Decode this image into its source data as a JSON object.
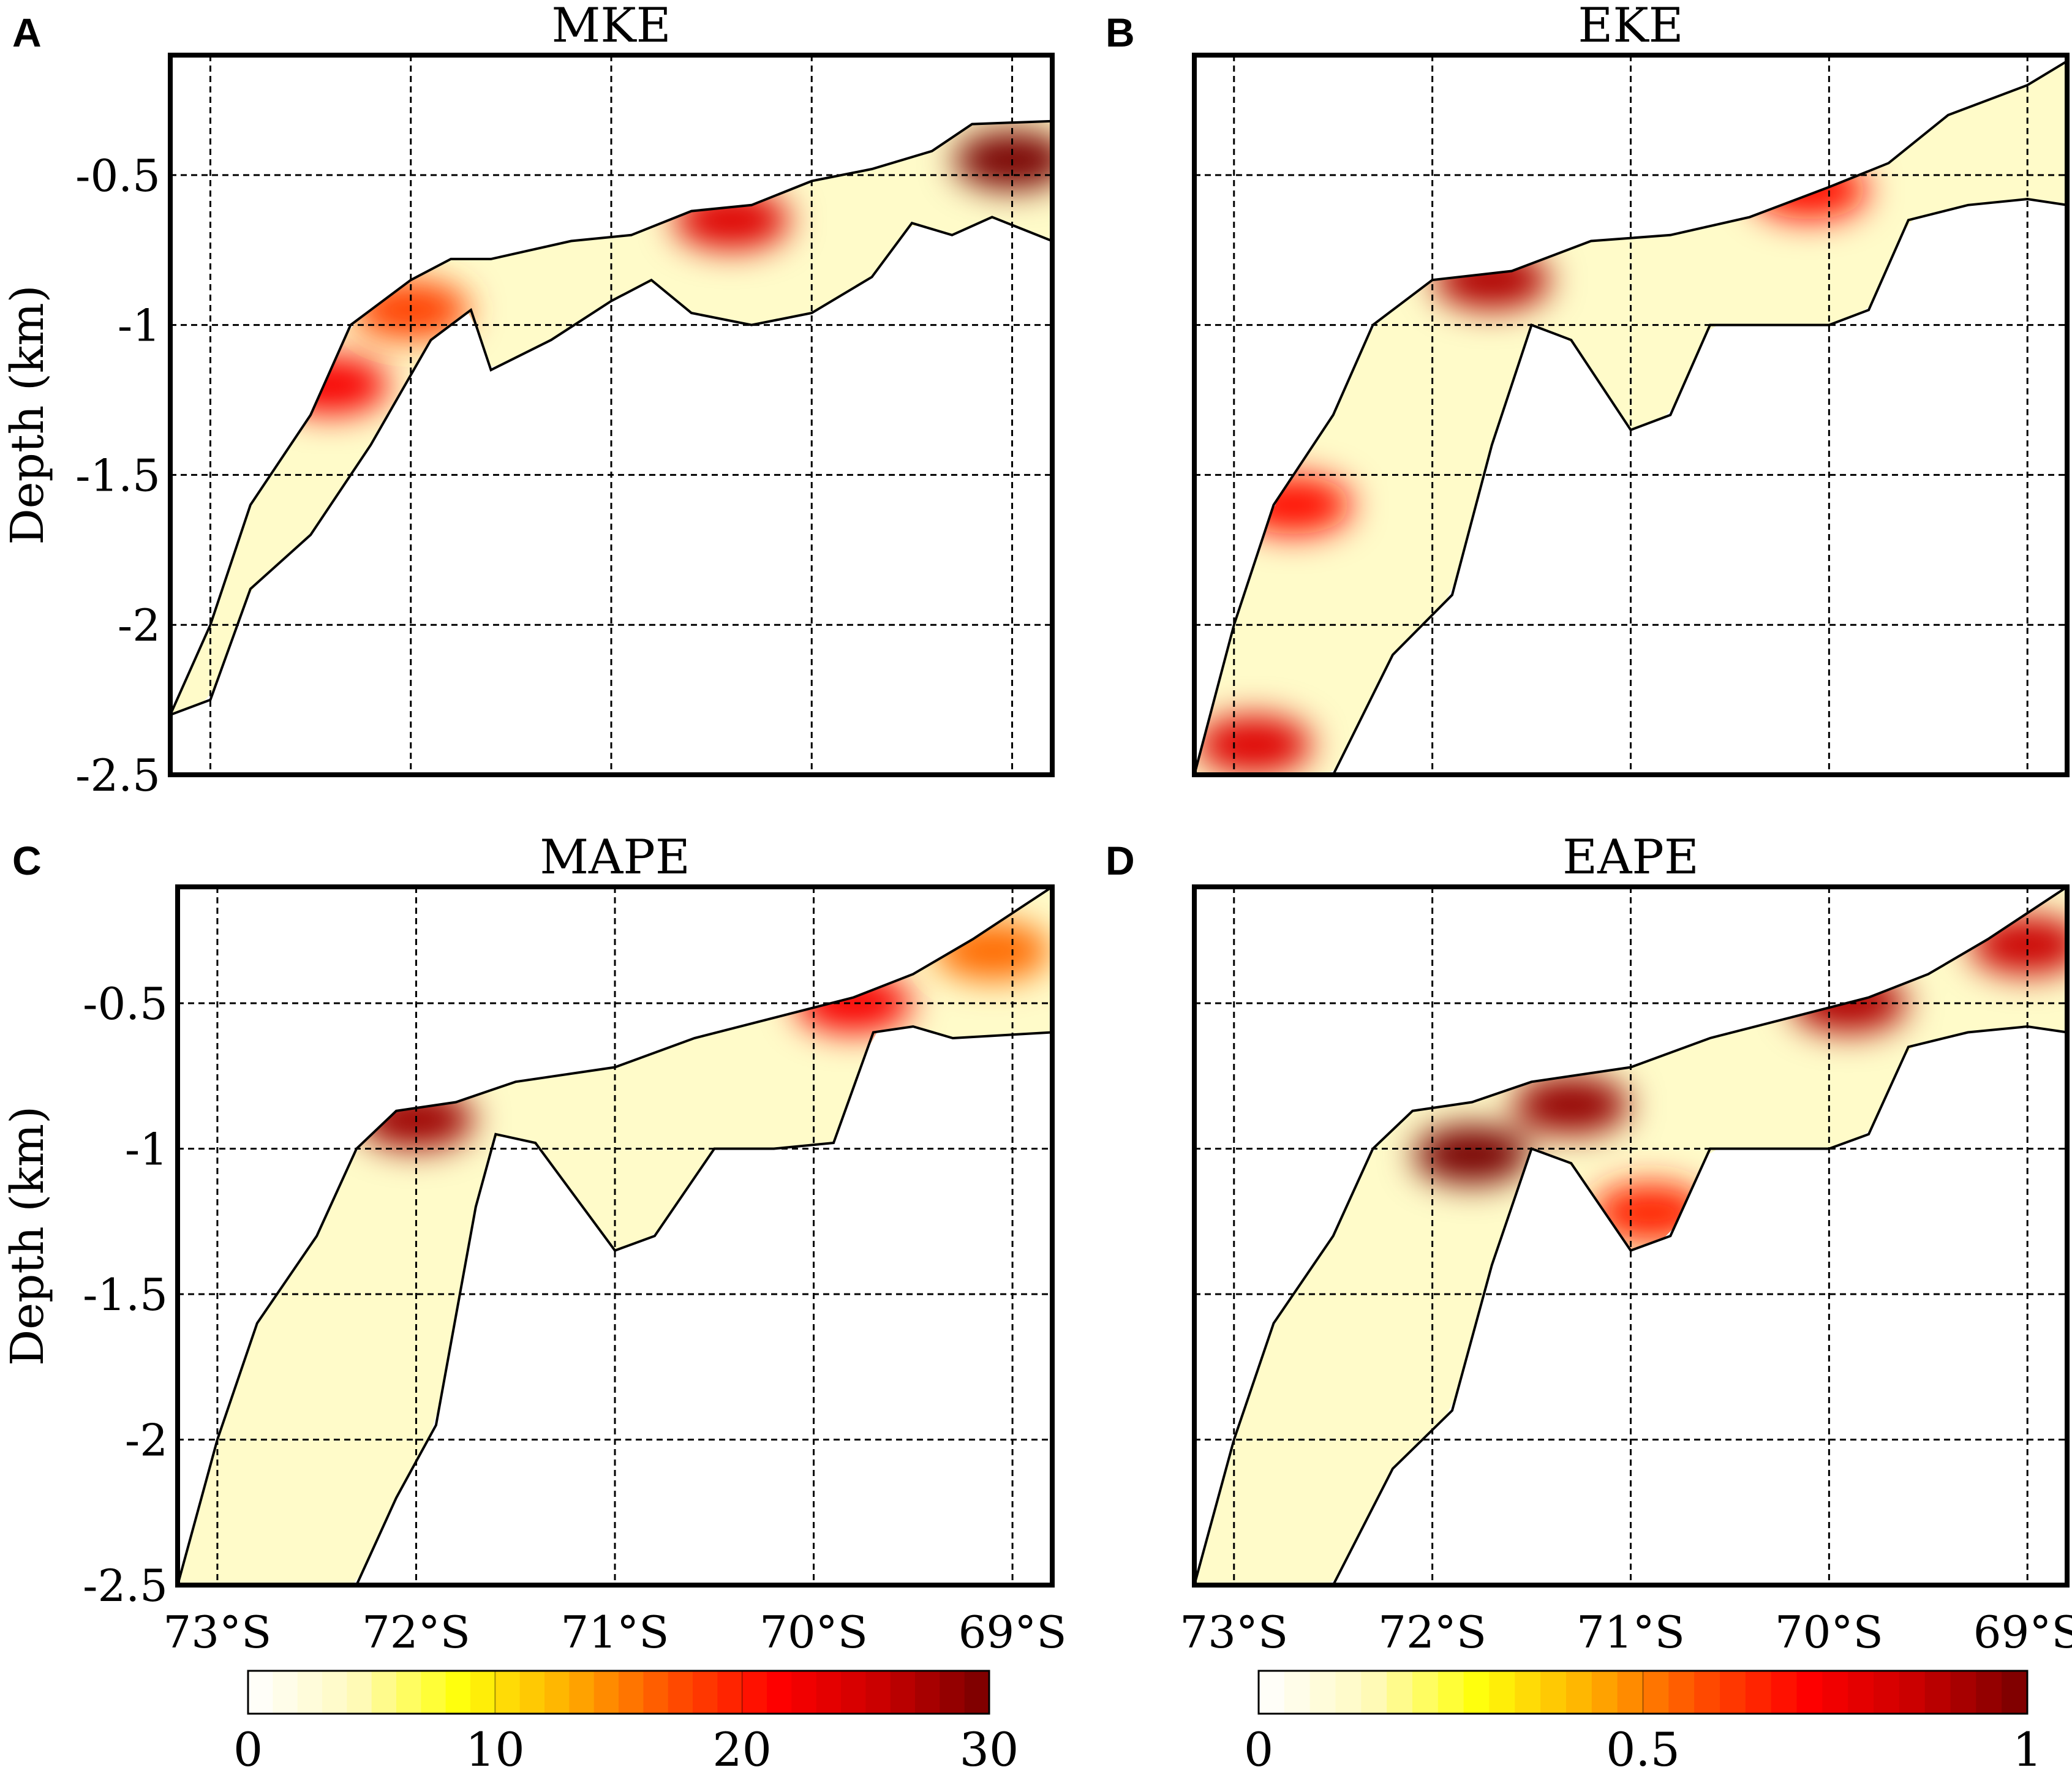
{
  "chart_data": [
    {
      "panel": "A",
      "type": "heatmap",
      "title": "MKE",
      "xlabel": "",
      "ylabel": "Depth (km)",
      "x_ticks": [
        {
          "value": -73,
          "label": ""
        },
        {
          "value": -72,
          "label": ""
        },
        {
          "value": -71,
          "label": ""
        },
        {
          "value": -70,
          "label": ""
        },
        {
          "value": -69,
          "label": ""
        }
      ],
      "y_ticks": [
        "-0.5",
        "-1",
        "-1.5",
        "-2",
        "-2.5"
      ],
      "xlim": [
        -73.2,
        -68.8
      ],
      "ylim": [
        -2.5,
        -0.1
      ],
      "grid": true,
      "surface": [
        [
          -73.2,
          -2.3
        ],
        [
          -73.0,
          -2.0
        ],
        [
          -72.8,
          -1.6
        ],
        [
          -72.5,
          -1.3
        ],
        [
          -72.3,
          -1.0
        ],
        [
          -72.0,
          -0.85
        ],
        [
          -71.8,
          -0.78
        ],
        [
          -71.6,
          -0.78
        ],
        [
          -71.2,
          -0.72
        ],
        [
          -70.9,
          -0.7
        ],
        [
          -70.6,
          -0.62
        ],
        [
          -70.3,
          -0.6
        ],
        [
          -70.0,
          -0.52
        ],
        [
          -69.7,
          -0.48
        ],
        [
          -69.4,
          -0.42
        ],
        [
          -69.2,
          -0.33
        ],
        [
          -68.8,
          -0.32
        ]
      ],
      "bottom": [
        [
          -73.2,
          -2.3
        ],
        [
          -73.0,
          -2.25
        ],
        [
          -72.8,
          -1.88
        ],
        [
          -72.5,
          -1.7
        ],
        [
          -72.2,
          -1.4
        ],
        [
          -71.9,
          -1.05
        ],
        [
          -71.7,
          -0.95
        ],
        [
          -71.6,
          -1.15
        ],
        [
          -71.3,
          -1.05
        ],
        [
          -71.0,
          -0.92
        ],
        [
          -70.8,
          -0.85
        ],
        [
          -70.6,
          -0.96
        ],
        [
          -70.3,
          -1.0
        ],
        [
          -70.0,
          -0.96
        ],
        [
          -69.7,
          -0.84
        ],
        [
          -69.5,
          -0.66
        ],
        [
          -69.3,
          -0.7
        ],
        [
          -69.1,
          -0.64
        ],
        [
          -68.8,
          -0.72
        ]
      ],
      "hotspots": [
        {
          "lat": -72.4,
          "depth": -1.2,
          "value": 22
        },
        {
          "lat": -72.0,
          "depth": -0.95,
          "value": 18
        },
        {
          "lat": -70.4,
          "depth": -0.65,
          "value": 24
        },
        {
          "lat": -69.0,
          "depth": -0.45,
          "value": 30
        }
      ],
      "colorbar": {
        "min": 0,
        "max": 30,
        "tick_labels": [
          "0",
          "10",
          "20",
          "30"
        ]
      }
    },
    {
      "panel": "B",
      "type": "heatmap",
      "title": "EKE",
      "xlabel": "",
      "ylabel": "",
      "x_ticks": [
        {
          "value": -73,
          "label": ""
        },
        {
          "value": -72,
          "label": ""
        },
        {
          "value": -71,
          "label": ""
        },
        {
          "value": -70,
          "label": ""
        },
        {
          "value": -69,
          "label": ""
        }
      ],
      "y_ticks": [],
      "xlim": [
        -73.2,
        -68.8
      ],
      "ylim": [
        -2.5,
        -0.1
      ],
      "grid": true,
      "surface": [
        [
          -73.2,
          -2.5
        ],
        [
          -73.0,
          -2.0
        ],
        [
          -72.8,
          -1.6
        ],
        [
          -72.5,
          -1.3
        ],
        [
          -72.3,
          -1.0
        ],
        [
          -72.0,
          -0.85
        ],
        [
          -71.6,
          -0.82
        ],
        [
          -71.2,
          -0.72
        ],
        [
          -70.8,
          -0.7
        ],
        [
          -70.4,
          -0.64
        ],
        [
          -70.0,
          -0.54
        ],
        [
          -69.7,
          -0.46
        ],
        [
          -69.4,
          -0.3
        ],
        [
          -69.0,
          -0.2
        ],
        [
          -68.8,
          -0.12
        ]
      ],
      "bottom": [
        [
          -73.2,
          -2.5
        ],
        [
          -72.5,
          -2.5
        ],
        [
          -72.2,
          -2.1
        ],
        [
          -71.9,
          -1.9
        ],
        [
          -71.7,
          -1.4
        ],
        [
          -71.5,
          -1.0
        ],
        [
          -71.3,
          -1.05
        ],
        [
          -71.0,
          -1.35
        ],
        [
          -70.8,
          -1.3
        ],
        [
          -70.6,
          -1.0
        ],
        [
          -70.3,
          -1.0
        ],
        [
          -70.0,
          -1.0
        ],
        [
          -69.8,
          -0.95
        ],
        [
          -69.6,
          -0.65
        ],
        [
          -69.3,
          -0.6
        ],
        [
          -69.0,
          -0.58
        ],
        [
          -68.8,
          -0.6
        ]
      ],
      "hotspots": [
        {
          "lat": -72.9,
          "depth": -2.4,
          "value": 0.8
        },
        {
          "lat": -72.7,
          "depth": -1.6,
          "value": 0.7
        },
        {
          "lat": -71.7,
          "depth": -0.85,
          "value": 0.9
        },
        {
          "lat": -70.1,
          "depth": -0.55,
          "value": 0.7
        }
      ],
      "colorbar": {
        "min": 0,
        "max": 1,
        "tick_labels": [
          "0",
          "0.5",
          "1"
        ]
      }
    },
    {
      "panel": "C",
      "type": "heatmap",
      "title": "MAPE",
      "xlabel": "",
      "ylabel": "Depth (km)",
      "x_ticks": [
        {
          "value": -73,
          "label": "73°S"
        },
        {
          "value": -72,
          "label": "72°S"
        },
        {
          "value": -71,
          "label": "71°S"
        },
        {
          "value": -70,
          "label": "70°S"
        },
        {
          "value": -69,
          "label": "69°S"
        }
      ],
      "y_ticks": [
        "-0.5",
        "-1",
        "-1.5",
        "-2",
        "-2.5"
      ],
      "xlim": [
        -73.2,
        -68.8
      ],
      "ylim": [
        -2.5,
        -0.1
      ],
      "grid": true,
      "surface": [
        [
          -73.2,
          -2.5
        ],
        [
          -73.0,
          -2.0
        ],
        [
          -72.8,
          -1.6
        ],
        [
          -72.5,
          -1.3
        ],
        [
          -72.3,
          -1.0
        ],
        [
          -72.1,
          -0.87
        ],
        [
          -71.8,
          -0.84
        ],
        [
          -71.5,
          -0.77
        ],
        [
          -71.0,
          -0.72
        ],
        [
          -70.6,
          -0.62
        ],
        [
          -70.2,
          -0.55
        ],
        [
          -69.8,
          -0.48
        ],
        [
          -69.5,
          -0.4
        ],
        [
          -69.2,
          -0.28
        ],
        [
          -68.8,
          -0.1
        ]
      ],
      "bottom": [
        [
          -72.3,
          -2.5
        ],
        [
          -72.1,
          -2.2
        ],
        [
          -71.9,
          -1.95
        ],
        [
          -71.7,
          -1.2
        ],
        [
          -71.6,
          -0.95
        ],
        [
          -71.4,
          -0.98
        ],
        [
          -71.0,
          -1.35
        ],
        [
          -70.8,
          -1.3
        ],
        [
          -70.5,
          -1.0
        ],
        [
          -70.2,
          -1.0
        ],
        [
          -69.9,
          -0.98
        ],
        [
          -69.7,
          -0.6
        ],
        [
          -69.5,
          -0.58
        ],
        [
          -69.3,
          -0.62
        ],
        [
          -68.8,
          -0.6
        ]
      ],
      "hotspots": [
        {
          "lat": -72.0,
          "depth": -0.9,
          "value": 28
        },
        {
          "lat": -69.8,
          "depth": -0.5,
          "value": 22
        },
        {
          "lat": -69.1,
          "depth": -0.32,
          "value": 16
        }
      ],
      "colorbar": {
        "min": 0,
        "max": 30,
        "tick_labels": [
          "0",
          "10",
          "20",
          "30"
        ]
      }
    },
    {
      "panel": "D",
      "type": "heatmap",
      "title": "EAPE",
      "xlabel": "",
      "ylabel": "",
      "x_ticks": [
        {
          "value": -73,
          "label": "73°S"
        },
        {
          "value": -72,
          "label": "72°S"
        },
        {
          "value": -71,
          "label": "71°S"
        },
        {
          "value": -70,
          "label": "70°S"
        },
        {
          "value": -69,
          "label": "69°S"
        }
      ],
      "y_ticks": [],
      "xlim": [
        -73.2,
        -68.8
      ],
      "ylim": [
        -2.5,
        -0.1
      ],
      "grid": true,
      "surface": [
        [
          -73.2,
          -2.5
        ],
        [
          -73.0,
          -2.0
        ],
        [
          -72.8,
          -1.6
        ],
        [
          -72.5,
          -1.3
        ],
        [
          -72.3,
          -1.0
        ],
        [
          -72.1,
          -0.87
        ],
        [
          -71.8,
          -0.84
        ],
        [
          -71.5,
          -0.77
        ],
        [
          -71.0,
          -0.72
        ],
        [
          -70.6,
          -0.62
        ],
        [
          -70.2,
          -0.55
        ],
        [
          -69.8,
          -0.48
        ],
        [
          -69.5,
          -0.4
        ],
        [
          -69.2,
          -0.28
        ],
        [
          -68.8,
          -0.1
        ]
      ],
      "bottom": [
        [
          -72.5,
          -2.5
        ],
        [
          -72.2,
          -2.1
        ],
        [
          -71.9,
          -1.9
        ],
        [
          -71.7,
          -1.4
        ],
        [
          -71.5,
          -1.0
        ],
        [
          -71.3,
          -1.05
        ],
        [
          -71.0,
          -1.35
        ],
        [
          -70.8,
          -1.3
        ],
        [
          -70.6,
          -1.0
        ],
        [
          -70.3,
          -1.0
        ],
        [
          -70.0,
          -1.0
        ],
        [
          -69.8,
          -0.95
        ],
        [
          -69.6,
          -0.65
        ],
        [
          -69.3,
          -0.6
        ],
        [
          -69.0,
          -0.58
        ],
        [
          -68.8,
          -0.6
        ]
      ],
      "hotspots": [
        {
          "lat": -71.8,
          "depth": -1.02,
          "value": 1.0
        },
        {
          "lat": -71.3,
          "depth": -0.85,
          "value": 0.95
        },
        {
          "lat": -70.9,
          "depth": -1.22,
          "value": 0.65
        },
        {
          "lat": -69.9,
          "depth": -0.5,
          "value": 0.9
        },
        {
          "lat": -69.0,
          "depth": -0.3,
          "value": 0.85
        }
      ],
      "colorbar": {
        "min": 0,
        "max": 1,
        "tick_labels": [
          "0",
          "0.5",
          "1"
        ]
      }
    }
  ],
  "colormap": [
    "#ffffff",
    "#fffabf",
    "#ffff0a",
    "#ffb000",
    "#ff5000",
    "#ff0000",
    "#c80000",
    "#780000"
  ]
}
